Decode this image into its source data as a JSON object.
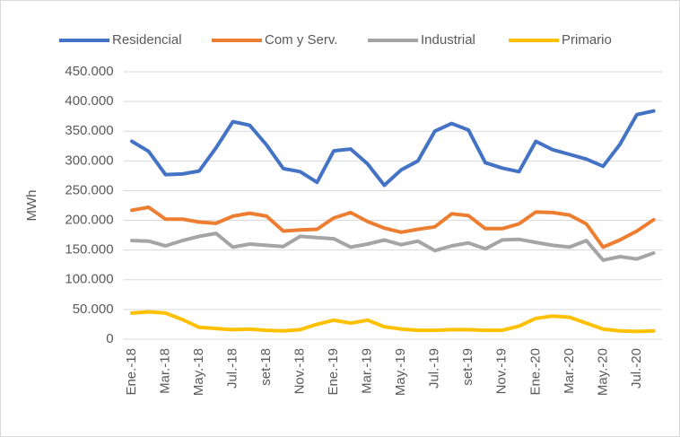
{
  "chart_data": {
    "type": "line",
    "y_label": "MWh",
    "legend": "top",
    "grid": true,
    "categories": [
      "Ene.-18",
      null,
      "Mar.-18",
      null,
      "May.-18",
      null,
      "Jul.-18",
      null,
      "set-18",
      null,
      "Nov.-18",
      null,
      "Ene.-19",
      null,
      "Mar.-19",
      null,
      "May.-19",
      null,
      "Jul.-19",
      null,
      "set-19",
      null,
      "Nov.-19",
      null,
      "Ene.-20",
      null,
      "Mar.-20",
      null,
      "May.-20",
      null,
      "Jul.-20",
      null
    ],
    "ylim": [
      0,
      450000
    ],
    "yticks": [
      0,
      {
        "value": 50000,
        "label": "50.000"
      },
      {
        "value": 100000,
        "label": "100.000"
      },
      {
        "value": 150000,
        "label": "150.000"
      },
      {
        "value": 200000,
        "label": "200.000"
      },
      {
        "value": 250000,
        "label": "250.000"
      },
      {
        "value": 300000,
        "label": "300.000"
      },
      {
        "value": 350000,
        "label": "350.000"
      },
      {
        "value": 400000,
        "label": "400.000"
      },
      {
        "value": 450000,
        "label": "450.000"
      }
    ],
    "series": [
      {
        "name": "Residencial",
        "color": "#4472c4",
        "values": [
          333000,
          316000,
          277000,
          278000,
          283000,
          322000,
          366000,
          360000,
          327000,
          287000,
          282000,
          264000,
          317000,
          320000,
          295000,
          259000,
          285000,
          300000,
          350000,
          363000,
          352000,
          297000,
          288000,
          282000,
          333000,
          319000,
          311000,
          303000,
          291000,
          328000,
          378000,
          384000
        ]
      },
      {
        "name": "Com y Serv.",
        "color": "#ed7d31",
        "values": [
          217000,
          222000,
          202000,
          202000,
          197000,
          195000,
          207000,
          212000,
          207000,
          182000,
          184000,
          185000,
          204000,
          213000,
          198000,
          187000,
          180000,
          185000,
          189000,
          211000,
          208000,
          186000,
          186000,
          194000,
          214000,
          213000,
          209000,
          194000,
          155000,
          167000,
          182000,
          201000
        ]
      },
      {
        "name": "Industrial",
        "color": "#a5a5a5",
        "values": [
          166000,
          165000,
          157000,
          166000,
          173000,
          178000,
          155000,
          160000,
          158000,
          156000,
          173000,
          171000,
          169000,
          155000,
          160000,
          167000,
          159000,
          165000,
          149000,
          157000,
          162000,
          152000,
          167000,
          168000,
          163000,
          158000,
          155000,
          166000,
          133000,
          139000,
          135000,
          145000
        ]
      },
      {
        "name": "Primario",
        "color": "#ffc000",
        "values": [
          44000,
          46000,
          44000,
          33000,
          20000,
          18000,
          16000,
          17000,
          15000,
          14000,
          16000,
          25000,
          32000,
          27000,
          32000,
          21000,
          17000,
          15000,
          15000,
          16000,
          16000,
          15000,
          15000,
          22000,
          35000,
          39000,
          37000,
          27000,
          17000,
          14000,
          13000,
          14000
        ]
      }
    ]
  }
}
